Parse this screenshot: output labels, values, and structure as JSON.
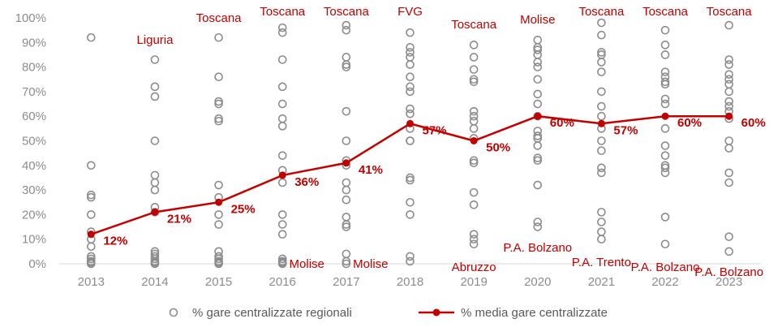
{
  "chart_data": {
    "type": "scatter+line",
    "title": "",
    "xlabel": "",
    "ylabel": "",
    "ylim": [
      0,
      100
    ],
    "ytick_labels": [
      "0%",
      "10%",
      "20%",
      "30%",
      "40%",
      "50%",
      "60%",
      "70%",
      "80%",
      "90%",
      "100%"
    ],
    "categories": [
      "2013",
      "2014",
      "2015",
      "2016",
      "2017",
      "2018",
      "2019",
      "2020",
      "2021",
      "2022",
      "2023"
    ],
    "legend_position": "bottom",
    "colors": {
      "scatter": "#8c8c8c",
      "line": "#c00000"
    },
    "series": [
      {
        "name": "% gare centralizzate regionali",
        "type": "scatter",
        "values": [
          [
            92,
            40,
            28,
            27,
            20,
            13,
            10,
            7,
            3,
            2,
            1,
            0.5,
            0
          ],
          [
            83,
            72,
            68,
            50,
            36,
            33,
            30,
            23,
            21,
            5,
            4,
            3,
            2,
            1,
            0.5,
            0
          ],
          [
            92,
            76,
            66,
            65,
            59,
            58,
            32,
            27,
            20,
            16,
            5,
            3,
            2,
            1,
            0.5,
            0
          ],
          [
            96,
            94,
            83,
            72,
            65,
            59,
            56,
            44,
            38,
            33,
            20,
            16,
            12,
            2,
            1,
            0.5,
            0
          ],
          [
            97,
            95,
            84,
            81,
            80,
            62,
            50,
            42,
            40,
            33,
            30,
            26,
            19,
            16,
            15,
            4,
            1,
            0
          ],
          [
            94,
            88,
            86,
            84,
            81,
            76,
            72,
            70,
            63,
            61,
            55,
            50,
            50,
            35,
            34,
            25,
            20,
            3,
            1
          ],
          [
            89,
            84,
            79,
            75,
            74,
            62,
            60,
            58,
            55,
            51,
            42,
            41,
            29,
            24,
            12,
            10,
            8
          ],
          [
            91,
            88,
            87,
            85,
            82,
            80,
            75,
            69,
            65,
            60,
            54,
            52,
            51,
            48,
            43,
            42,
            32,
            17,
            15
          ],
          [
            98,
            93,
            86,
            85,
            82,
            78,
            70,
            64,
            60,
            55,
            50,
            46,
            39,
            37,
            21,
            17,
            13,
            10
          ],
          [
            95,
            89,
            85,
            78,
            76,
            74,
            73,
            67,
            65,
            55,
            48,
            44,
            40,
            39,
            37,
            19,
            8
          ],
          [
            97,
            83,
            81,
            77,
            75,
            73,
            70,
            66,
            64,
            62,
            59,
            50,
            47,
            37,
            33,
            11,
            5
          ]
        ]
      },
      {
        "name": "% media gare centralizzate",
        "type": "line",
        "values": [
          12,
          21,
          25,
          36,
          41,
          57,
          50,
          60,
          57,
          60,
          60
        ],
        "labels": [
          "12%",
          "21%",
          "25%",
          "36%",
          "41%",
          "57%",
          "50%",
          "60%",
          "57%",
          "60%",
          "60%"
        ]
      }
    ],
    "annotations_top": [
      "",
      "Liguria",
      "Toscana",
      "Toscana",
      "Toscana",
      "FVG",
      "Toscana",
      "Molise",
      "Toscana",
      "Toscana",
      "Toscana"
    ],
    "annotations_bottom": [
      "",
      "",
      "",
      "Molise",
      "Molise",
      "",
      "Abruzzo",
      "P.A. Bolzano",
      "P.A. Trento",
      "P.A. Bolzano",
      "P.A. Bolzano"
    ]
  }
}
